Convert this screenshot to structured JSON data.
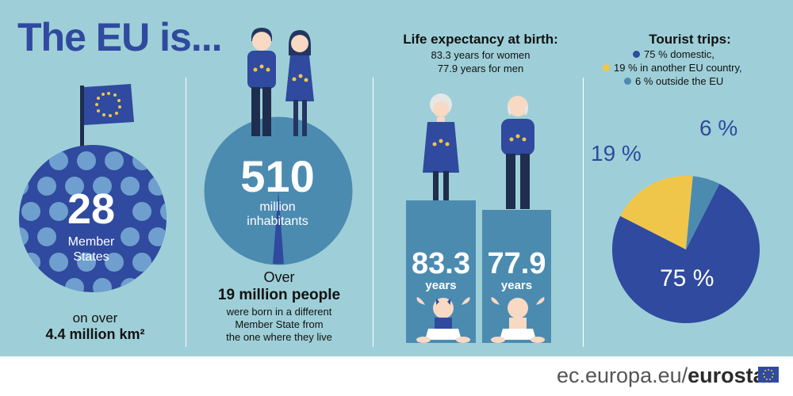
{
  "title": "The EU is...",
  "member_states": {
    "number": "28",
    "label_line1": "Member",
    "label_line2": "States",
    "area_prefix": "on over",
    "area_value": "4.4 million km²"
  },
  "population": {
    "number": "510",
    "label_line1": "million",
    "label_line2": "inhabitants",
    "over_label": "Over",
    "migrants_value": "19 million people",
    "migrants_line1": "were born in a different",
    "migrants_line2": "Member State from",
    "migrants_line3": "the one where they live"
  },
  "life_expectancy": {
    "heading": "Life expectancy at birth:",
    "women_line": "83.3 years for women",
    "men_line": "77.9 years for men",
    "women_value": "83.3",
    "men_value": "77.9",
    "unit_women": "years",
    "unit_men": "years"
  },
  "tourism": {
    "heading": "Tourist trips:",
    "legend_domestic": "75 % domestic,",
    "legend_other_eu": "19 % in another EU country,",
    "legend_outside": "6 % outside the EU",
    "label_domestic": "75 %",
    "label_other_eu": "19 %",
    "label_outside": "6 %"
  },
  "chart_data": {
    "type": "pie",
    "categories": [
      "domestic",
      "in another EU country",
      "outside the EU"
    ],
    "values": [
      75,
      19,
      6
    ],
    "colors": [
      "#2f4a9e",
      "#f0c64a",
      "#4c8bb0"
    ]
  },
  "footer": {
    "domain": "ec.europa.eu/",
    "brand": "eurostat"
  },
  "colors": {
    "background": "#9ecfd8",
    "eu_blue": "#2f4a9e",
    "yellow": "#f0c64a",
    "teal": "#4c8bb0"
  },
  "icons": [
    "eu-flag-icon",
    "couple-icon",
    "elderly-woman-icon",
    "elderly-man-icon",
    "baby-girl-icon",
    "baby-boy-icon",
    "eu-badge-icon"
  ]
}
